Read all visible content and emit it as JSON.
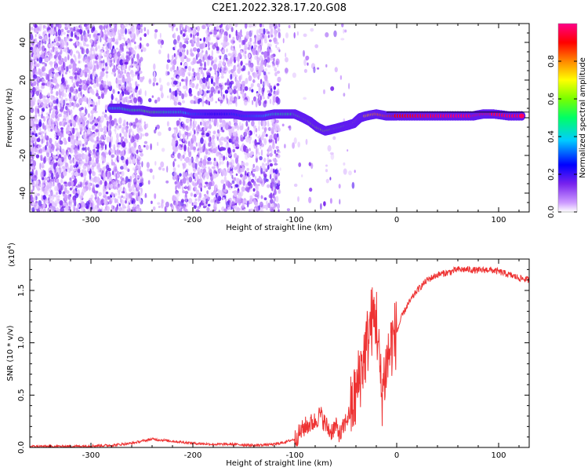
{
  "title": "C2E1.2022.328.17.20.G08",
  "chart_data": [
    {
      "type": "heatmap",
      "xlabel": "Height of straight line (km)",
      "ylabel": "Frequency (Hz)",
      "xlim": [
        -360,
        130
      ],
      "ylim": [
        -50,
        50
      ],
      "x_ticks": [
        -300,
        -200,
        -100,
        0,
        100
      ],
      "y_ticks": [
        -40,
        -20,
        0,
        20,
        40
      ],
      "grid": false,
      "colorbar": {
        "label": "Normalized spectral amplitude",
        "range": [
          0,
          1
        ],
        "ticks": [
          "0.0",
          "0.2",
          "0.4",
          "0.6",
          "0.8"
        ],
        "colormap": [
          "#ffffff",
          "#cc99ff",
          "#7722ee",
          "#0000ff",
          "#00ccff",
          "#00ff66",
          "#77ff00",
          "#ffff00",
          "#ff8800",
          "#ff0000",
          "#ff0088"
        ]
      },
      "signal_track": [
        {
          "x": -280,
          "y": 5,
          "a": 0.42
        },
        {
          "x": -270,
          "y": 5,
          "a": 0.45
        },
        {
          "x": -260,
          "y": 4,
          "a": 0.5
        },
        {
          "x": -250,
          "y": 4,
          "a": 0.52
        },
        {
          "x": -240,
          "y": 3,
          "a": 0.55
        },
        {
          "x": -230,
          "y": 3,
          "a": 0.5
        },
        {
          "x": -220,
          "y": 3,
          "a": 0.45
        },
        {
          "x": -210,
          "y": 3,
          "a": 0.45
        },
        {
          "x": -200,
          "y": 2,
          "a": 0.35
        },
        {
          "x": -190,
          "y": 2,
          "a": 0.33
        },
        {
          "x": -180,
          "y": 2,
          "a": 0.3
        },
        {
          "x": -170,
          "y": 2,
          "a": 0.3
        },
        {
          "x": -160,
          "y": 2,
          "a": 0.32
        },
        {
          "x": -150,
          "y": 1,
          "a": 0.33
        },
        {
          "x": -140,
          "y": 1,
          "a": 0.35
        },
        {
          "x": -130,
          "y": 1,
          "a": 0.38
        },
        {
          "x": -120,
          "y": 2,
          "a": 0.45
        },
        {
          "x": -110,
          "y": 2,
          "a": 0.48
        },
        {
          "x": -100,
          "y": 2,
          "a": 0.5
        },
        {
          "x": -92,
          "y": 0,
          "a": 0.55
        },
        {
          "x": -85,
          "y": -2,
          "a": 0.6
        },
        {
          "x": -78,
          "y": -5,
          "a": 0.62
        },
        {
          "x": -70,
          "y": -7,
          "a": 0.6
        },
        {
          "x": -62,
          "y": -6,
          "a": 0.58
        },
        {
          "x": -55,
          "y": -5,
          "a": 0.55
        },
        {
          "x": -48,
          "y": -4,
          "a": 0.6
        },
        {
          "x": -42,
          "y": -3,
          "a": 0.65
        },
        {
          "x": -36,
          "y": 0,
          "a": 0.7
        },
        {
          "x": -30,
          "y": 1,
          "a": 0.75
        },
        {
          "x": -20,
          "y": 2,
          "a": 0.8
        },
        {
          "x": -10,
          "y": 1,
          "a": 0.85
        },
        {
          "x": 0,
          "y": 1,
          "a": 0.9
        },
        {
          "x": 15,
          "y": 1,
          "a": 0.92
        },
        {
          "x": 30,
          "y": 1,
          "a": 0.95
        },
        {
          "x": 45,
          "y": 1,
          "a": 0.97
        },
        {
          "x": 60,
          "y": 1,
          "a": 0.98
        },
        {
          "x": 75,
          "y": 1,
          "a": 0.97
        },
        {
          "x": 85,
          "y": 2,
          "a": 0.95
        },
        {
          "x": 95,
          "y": 2,
          "a": 0.96
        },
        {
          "x": 110,
          "y": 1,
          "a": 0.97
        },
        {
          "x": 125,
          "y": 1,
          "a": 0.97
        }
      ]
    },
    {
      "type": "line",
      "xlabel": "Height of straight line (km)",
      "ylabel": "SNR (10 * v/v)",
      "y_multiplier": "(x10",
      "y_multiplier_exp": "4",
      "y_multiplier_close": ")",
      "xlim": [
        -360,
        130
      ],
      "ylim": [
        0,
        1.8
      ],
      "x_ticks": [
        -300,
        -200,
        -100,
        0,
        100
      ],
      "y_ticks": [
        "0.0",
        "0.5",
        "1.0",
        "1.5"
      ],
      "grid": false,
      "series": [
        {
          "color": "#ee3333",
          "x": [
            -360,
            -340,
            -320,
            -300,
            -280,
            -260,
            -250,
            -240,
            -230,
            -220,
            -200,
            -180,
            -160,
            -140,
            -120,
            -110,
            -100,
            -90,
            -80,
            -75,
            -70,
            -65,
            -60,
            -55,
            -50,
            -45,
            -40,
            -35,
            -30,
            -25,
            -20,
            -15,
            -10,
            -5,
            0,
            5,
            10,
            20,
            30,
            40,
            50,
            60,
            70,
            80,
            90,
            100,
            110,
            120,
            130
          ],
          "values": [
            0.01,
            0.01,
            0.01,
            0.015,
            0.02,
            0.04,
            0.06,
            0.08,
            0.07,
            0.06,
            0.04,
            0.03,
            0.03,
            0.02,
            0.03,
            0.05,
            0.08,
            0.2,
            0.25,
            0.32,
            0.22,
            0.15,
            0.2,
            0.12,
            0.25,
            0.35,
            0.5,
            0.75,
            0.95,
            1.2,
            1.25,
            0.5,
            0.8,
            1.0,
            1.1,
            1.25,
            1.35,
            1.5,
            1.6,
            1.65,
            1.67,
            1.7,
            1.7,
            1.69,
            1.7,
            1.68,
            1.65,
            1.62,
            1.6
          ]
        }
      ]
    }
  ]
}
